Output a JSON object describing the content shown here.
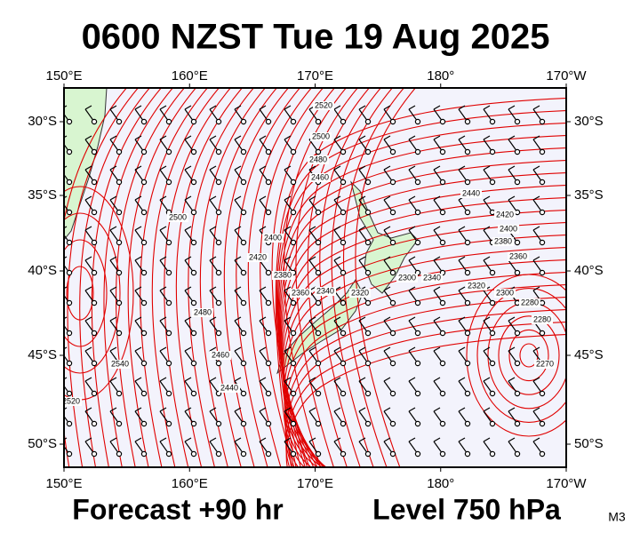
{
  "header": {
    "title": "0600 NZST Tue 19 Aug 2025"
  },
  "axes": {
    "top": [
      "150°E",
      "160°E",
      "170°E",
      "180°",
      "170°W"
    ],
    "bottom": [
      "150°E",
      "160°E",
      "170°E",
      "180°",
      "170°W"
    ],
    "left": [
      "30°S",
      "35°S",
      "40°S",
      "45°S",
      "50°S"
    ],
    "right": [
      "30°S",
      "35°S",
      "40°S",
      "45°S",
      "50°S"
    ]
  },
  "contour_labels": [
    "2520",
    "2500",
    "2480",
    "2460",
    "2440",
    "2420",
    "2400",
    "2380",
    "2360",
    "2340",
    "2320",
    "2300",
    "2280",
    "2540",
    "2520",
    "2500",
    "2480",
    "2460",
    "2440",
    "2420",
    "2400",
    "2380",
    "2360",
    "2340",
    "2320",
    "2300",
    "2280",
    "2270"
  ],
  "footer": {
    "forecast": "Forecast +90 hr",
    "level": "Level 750 hPa",
    "code": "M3"
  }
}
